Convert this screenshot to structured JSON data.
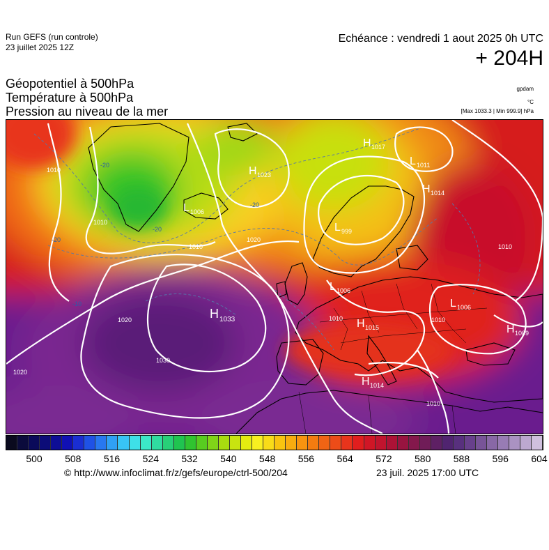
{
  "header": {
    "run_title": "Run GEFS (run controle)",
    "run_date": "23 juillet 2025 12Z",
    "valid_time": "Echéance : vendredi 1 aout 2025 0h UTC",
    "lead_time": "+ 204H"
  },
  "parameters": [
    "Géopotentiel à 500hPa",
    "Température à 500hPa",
    "Pression au niveau de la mer"
  ],
  "units": {
    "geopotential": "gpdam",
    "temperature": "°C",
    "minmax": "[Max 1033.3 | Min 999.9] hPa"
  },
  "pressure_centers": [
    {
      "type": "H",
      "value": "1017"
    },
    {
      "type": "L",
      "value": "1011"
    },
    {
      "type": "H",
      "value": "1023"
    },
    {
      "type": "H",
      "value": "1014"
    },
    {
      "type": "L",
      "value": "1006"
    },
    {
      "type": "L",
      "value": "999"
    },
    {
      "type": "L",
      "value": "1006"
    },
    {
      "type": "L",
      "value": "1006"
    },
    {
      "type": "H",
      "value": "1033"
    },
    {
      "type": "H",
      "value": "1015"
    },
    {
      "type": "H",
      "value": "1009"
    },
    {
      "type": "H",
      "value": "1014"
    }
  ],
  "isobar_labels": [
    "1010",
    "1010",
    "1010",
    "1020",
    "1020",
    "1030",
    "1020",
    "1010",
    "1010",
    "1010",
    "1010"
  ],
  "isotherm_labels": [
    "-20",
    "-20",
    "-20",
    "-20",
    "-10"
  ],
  "colorbar": {
    "ticks": [
      "500",
      "508",
      "516",
      "524",
      "532",
      "540",
      "548",
      "556",
      "564",
      "572",
      "580",
      "588",
      "596",
      "604"
    ],
    "colors": [
      "#0a0a1e",
      "#0b0b3c",
      "#0a0a5a",
      "#0c0c78",
      "#0e0e96",
      "#1010b4",
      "#1a2ed2",
      "#1f52e6",
      "#2878f0",
      "#30a0f5",
      "#38c4f5",
      "#3ee0e8",
      "#3ce8c8",
      "#30dca0",
      "#28d078",
      "#20c450",
      "#30c430",
      "#58cc20",
      "#80d418",
      "#a8dc10",
      "#c8e410",
      "#e4ec10",
      "#f8f020",
      "#f8dc18",
      "#f8c410",
      "#f8ac10",
      "#f89410",
      "#f47c10",
      "#f06414",
      "#ec4c18",
      "#e8341c",
      "#e01e1e",
      "#d01626",
      "#c0142e",
      "#ac1236",
      "#981440",
      "#84184c",
      "#701c58",
      "#5e2064",
      "#502470",
      "#58307e",
      "#68408c",
      "#785498",
      "#8868a6",
      "#987cb4",
      "#aa92c2",
      "#bca8d0",
      "#d0c0de"
    ]
  },
  "footer": {
    "credit": "© http://www.infoclimat.fr/z/gefs/europe/ctrl-500/204",
    "render_time": "23 juil. 2025 17:00 UTC"
  }
}
